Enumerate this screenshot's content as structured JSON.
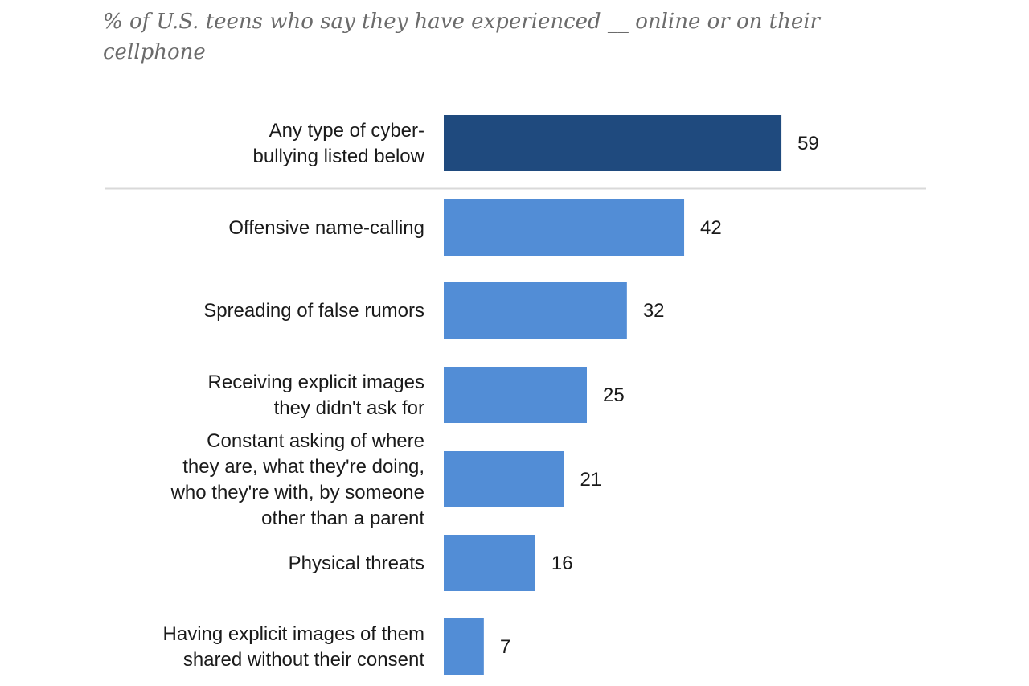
{
  "chart_data": {
    "type": "bar",
    "orientation": "horizontal",
    "subtitle": "% of U.S. teens who say they have experienced __ online or on their cellphone",
    "categories": [
      [
        "Any type of cyber-",
        "bullying listed below"
      ],
      [
        "Offensive name-calling"
      ],
      [
        "Spreading of false rumors"
      ],
      [
        "Receiving explicit images",
        "they didn't ask for"
      ],
      [
        "Constant asking of where",
        "they are, what they're doing,",
        "who they're with, by someone",
        "other than a parent"
      ],
      [
        "Physical threats"
      ],
      [
        "Having explicit images of them",
        "shared without their consent"
      ]
    ],
    "values": [
      59,
      42,
      32,
      25,
      21,
      16,
      7
    ],
    "value_labels": [
      "59",
      "42",
      "32",
      "25",
      "21",
      "16",
      "7"
    ],
    "colors": {
      "summary_bar": "#1f4a7e",
      "detail_bar": "#528dd6",
      "divider": "#d9d9d9"
    },
    "highlighted_index": 0,
    "divider_after_index": 0
  }
}
